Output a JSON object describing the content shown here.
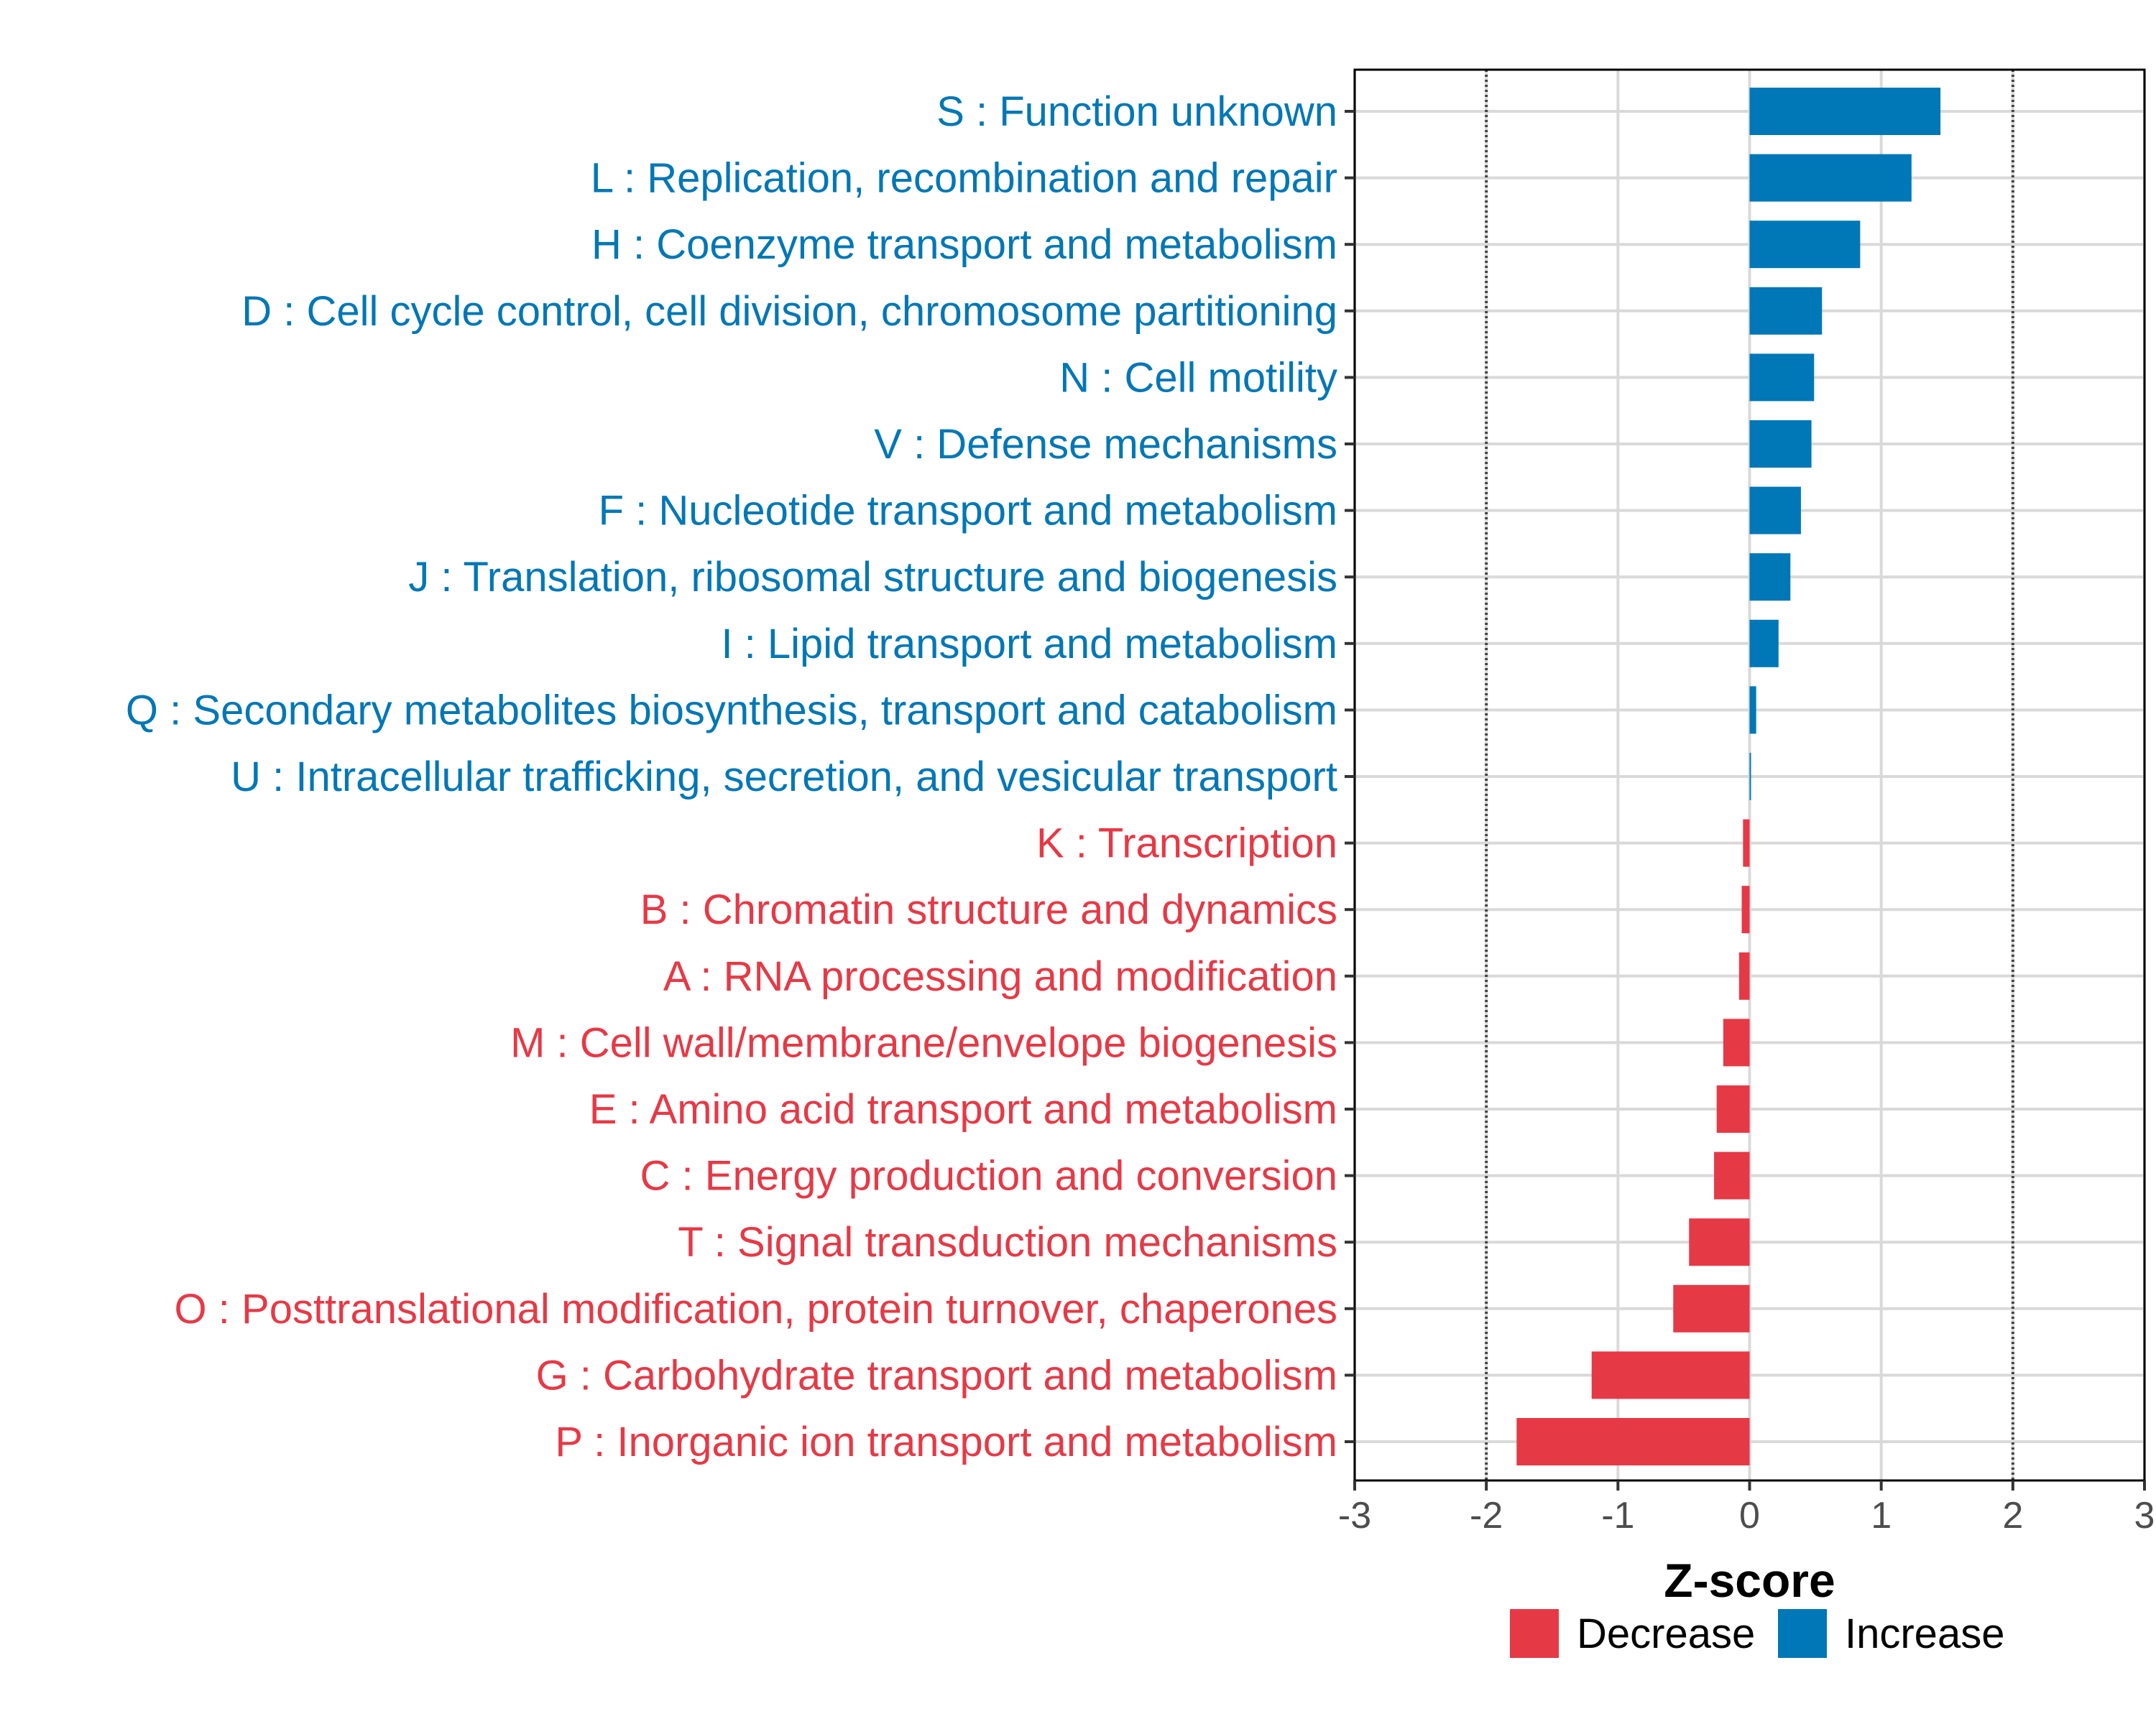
{
  "chart_data": {
    "type": "bar",
    "orientation": "horizontal",
    "title": "",
    "xlabel": "Z-score",
    "ylabel": "",
    "xlim": [
      -3,
      3
    ],
    "x_ticks": [
      -3,
      -2,
      -1,
      0,
      1,
      2,
      3
    ],
    "x_tick_labels": [
      "-3",
      "-2",
      "-1",
      "0",
      "1",
      "2",
      "3"
    ],
    "reference_lines": [
      -2,
      2
    ],
    "grid": true,
    "legend_position": "bottom",
    "legend": [
      {
        "name": "Decrease",
        "color": "#E63946"
      },
      {
        "name": "Increase",
        "color": "#0077B6"
      }
    ],
    "categories": [
      "S : Function unknown",
      "L : Replication, recombination and repair",
      "H : Coenzyme transport and metabolism",
      "D : Cell cycle control, cell division, chromosome partitioning",
      "N : Cell motility",
      "V : Defense mechanisms",
      "F : Nucleotide transport and metabolism",
      "J : Translation, ribosomal structure and biogenesis",
      "I : Lipid transport and metabolism",
      "Q : Secondary metabolites biosynthesis, transport and catabolism",
      "U : Intracellular trafficking, secretion, and vesicular transport",
      "K : Transcription",
      "B : Chromatin structure and dynamics",
      "A : RNA processing and modification",
      "M : Cell wall/membrane/envelope biogenesis",
      "E : Amino acid transport and metabolism",
      "C : Energy production and conversion",
      "T : Signal transduction mechanisms",
      "O : Posttranslational modification, protein turnover, chaperones",
      "G : Carbohydrate transport and metabolism",
      "P : Inorganic ion transport and metabolism"
    ],
    "values": [
      1.45,
      1.23,
      0.84,
      0.55,
      0.49,
      0.47,
      0.39,
      0.31,
      0.22,
      0.05,
      0.01,
      -0.05,
      -0.06,
      -0.08,
      -0.2,
      -0.25,
      -0.27,
      -0.46,
      -0.58,
      -1.2,
      -1.77
    ],
    "groups": [
      "Increase",
      "Increase",
      "Increase",
      "Increase",
      "Increase",
      "Increase",
      "Increase",
      "Increase",
      "Increase",
      "Increase",
      "Increase",
      "Decrease",
      "Decrease",
      "Decrease",
      "Decrease",
      "Decrease",
      "Decrease",
      "Decrease",
      "Decrease",
      "Decrease",
      "Decrease"
    ]
  }
}
